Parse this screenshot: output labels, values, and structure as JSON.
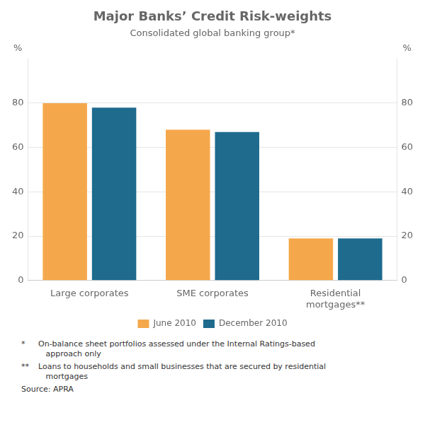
{
  "chart_data": {
    "type": "bar",
    "title": "Major Banks’ Credit Risk-weights",
    "subtitle": "Consolidated global banking group*",
    "categories": [
      "Large corporates",
      "SME corporates",
      "Residential\nmortgages**"
    ],
    "series": [
      {
        "name": "June 2010",
        "color": "#F5A84B",
        "values": [
          80,
          68,
          19
        ]
      },
      {
        "name": "December 2010",
        "color": "#1F6B8E",
        "values": [
          78,
          67,
          19
        ]
      }
    ],
    "ylim": [
      0,
      100
    ],
    "yticks": [
      0,
      20,
      40,
      60,
      80
    ],
    "y2lim": [
      0,
      100
    ],
    "y2ticks": [
      0,
      20,
      40,
      60,
      80
    ],
    "ylabel": "%",
    "y2label": "%",
    "grid": true,
    "legend": "bottom",
    "footnotes": [
      {
        "mark": "*",
        "text": "On-balance sheet portfolios assessed under the Internal Ratings-based\n   approach only"
      },
      {
        "mark": "**",
        "text": "Loans to households and small businesses that are secured by residential\n   mortgages"
      }
    ],
    "source": "Source: APRA"
  }
}
